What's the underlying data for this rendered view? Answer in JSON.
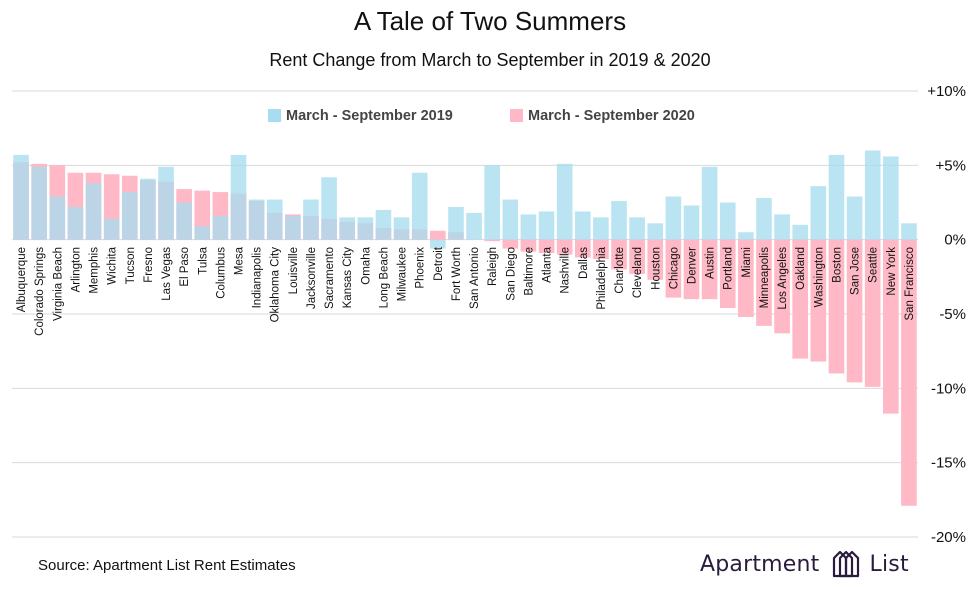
{
  "title": "A Tale of Two Summers",
  "subtitle": "Rent Change from March to September in 2019 & 2020",
  "source": "Source: Apartment List Rent Estimates",
  "brand": {
    "word1": "Apartment",
    "word2": "List",
    "logo_icon": "apartment-list-logo-icon"
  },
  "colors": {
    "series_2019": "#a8dcf0",
    "series_2020": "#ffb8c5",
    "overlap": "#c9a9bb",
    "grid": "#d9d9d9",
    "text": "#111111"
  },
  "chart_data": {
    "type": "bar",
    "title": "A Tale of Two Summers",
    "subtitle": "Rent Change from March to September in 2019 & 2020",
    "ylim": [
      -20,
      10
    ],
    "yticks": [
      10,
      5,
      0,
      -5,
      -10,
      -15,
      -20
    ],
    "ytick_labels": [
      "+10%",
      "+5%",
      "0%",
      "-5%",
      "-10%",
      "-15%",
      "-20%"
    ],
    "grid": true,
    "legend_position": "top-center",
    "categories": [
      "Albuquerque",
      "Colorado Springs",
      "Virginia Beach",
      "Arlington",
      "Memphis",
      "Wichita",
      "Tucson",
      "Fresno",
      "Las Vegas",
      "El Paso",
      "Tulsa",
      "Columbus",
      "Mesa",
      "Indianapolis",
      "Oklahoma City",
      "Louisville",
      "Jacksonville",
      "Sacramento",
      "Kansas City",
      "Omaha",
      "Long Beach",
      "Milwaukee",
      "Phoenix",
      "Detroit",
      "Fort Worth",
      "San Antonio",
      "Raleigh",
      "San Diego",
      "Baltimore",
      "Atlanta",
      "Nashville",
      "Dallas",
      "Philadelphia",
      "Charlotte",
      "Cleveland",
      "Houston",
      "Chicago",
      "Denver",
      "Austin",
      "Portland",
      "Miami",
      "Minneapolis",
      "Los Angeles",
      "Oakland",
      "Washington",
      "Boston",
      "San Jose",
      "Seattle",
      "New York",
      "San Francisco"
    ],
    "series": [
      {
        "name": "March - September 2019",
        "values": [
          5.7,
          4.9,
          2.9,
          2.2,
          3.8,
          1.4,
          3.2,
          4.1,
          4.9,
          2.5,
          0.9,
          1.6,
          5.7,
          2.7,
          2.7,
          1.6,
          2.7,
          4.2,
          1.5,
          1.5,
          2.0,
          1.5,
          4.5,
          -0.6,
          2.2,
          1.8,
          5.0,
          2.7,
          1.7,
          1.9,
          5.1,
          1.9,
          1.5,
          2.6,
          1.5,
          1.1,
          2.9,
          2.3,
          4.9,
          2.5,
          0.5,
          2.8,
          1.7,
          1.0,
          3.6,
          5.7,
          2.9,
          6.0,
          5.6,
          1.1
        ]
      },
      {
        "name": "March - September 2020",
        "values": [
          5.2,
          5.1,
          5.0,
          4.5,
          4.5,
          4.4,
          4.3,
          4.0,
          3.9,
          3.4,
          3.3,
          3.2,
          3.1,
          2.6,
          1.8,
          1.7,
          1.6,
          1.4,
          1.2,
          1.1,
          0.8,
          0.7,
          0.7,
          0.6,
          0.5,
          0.0,
          -0.1,
          -0.6,
          -0.8,
          -0.9,
          -1.0,
          -1.2,
          -1.3,
          -2.0,
          -2.3,
          -2.7,
          -3.9,
          -4.0,
          -4.0,
          -4.6,
          -5.2,
          -5.8,
          -6.3,
          -8.0,
          -8.2,
          -9.0,
          -9.6,
          -9.9,
          -11.7,
          -17.9
        ]
      }
    ]
  }
}
